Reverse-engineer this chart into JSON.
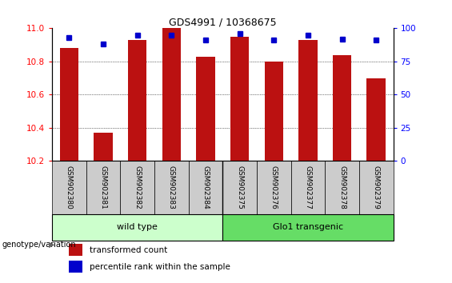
{
  "title": "GDS4991 / 10368675",
  "samples": [
    "GSM902380",
    "GSM902381",
    "GSM902382",
    "GSM902383",
    "GSM902384",
    "GSM902375",
    "GSM902376",
    "GSM902377",
    "GSM902378",
    "GSM902379"
  ],
  "transformed_count": [
    10.88,
    10.37,
    10.93,
    11.0,
    10.83,
    10.95,
    10.8,
    10.93,
    10.84,
    10.7
  ],
  "percentile_rank": [
    93,
    88,
    95,
    95,
    91,
    96,
    91,
    95,
    92,
    91
  ],
  "ylim_left": [
    10.2,
    11.0
  ],
  "ylim_right": [
    0,
    100
  ],
  "yticks_left": [
    10.2,
    10.4,
    10.6,
    10.8,
    11.0
  ],
  "yticks_right": [
    0,
    25,
    50,
    75,
    100
  ],
  "bar_color": "#BB1111",
  "dot_color": "#0000CC",
  "group_labels": [
    "wild type",
    "Glo1 transgenic"
  ],
  "wild_type_color": "#CCFFCC",
  "glo1_color": "#66DD66",
  "xticklabel_bg": "#CCCCCC",
  "background_color": "#FFFFFF",
  "legend_bar_label": "transformed count",
  "legend_dot_label": "percentile rank within the sample",
  "genotype_label": "genotype/variation"
}
